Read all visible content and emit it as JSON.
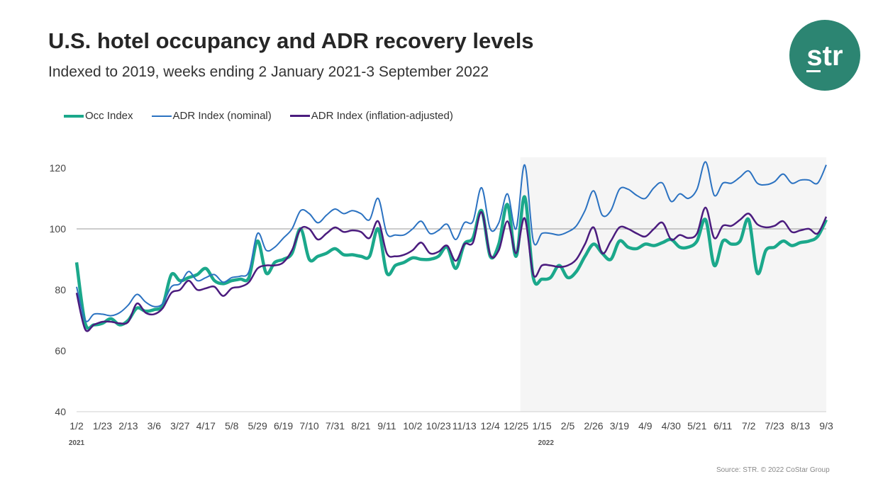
{
  "title": "U.S. hotel occupancy and ADR recovery levels",
  "subtitle": "Indexed to 2019, weeks ending 2 January 2021-3 September 2022",
  "logo_text": "str",
  "source": "Source: STR. © 2022 CoStar Group",
  "colors": {
    "occ": "#1ba88b",
    "adr_nominal": "#2b72c1",
    "adr_infl": "#4b1c7e",
    "shade": "#f5f5f5",
    "logo": "#2c8572"
  },
  "chart_data": {
    "type": "line",
    "title": "U.S. hotel occupancy and ADR recovery levels",
    "ylim": [
      40,
      120
    ],
    "y_ticks": [
      40,
      60,
      80,
      100,
      120
    ],
    "reference_line": 100,
    "legend_position": "top-left",
    "shaded_region": {
      "from": "1/1",
      "to": "9/3",
      "note": "2022"
    },
    "x": [
      "1/2",
      "1/9",
      "1/16",
      "1/23",
      "1/30",
      "2/6",
      "2/13",
      "2/20",
      "2/27",
      "3/6",
      "3/13",
      "3/20",
      "3/27",
      "4/3",
      "4/10",
      "4/17",
      "4/24",
      "5/1",
      "5/8",
      "5/15",
      "5/22",
      "5/29",
      "6/5",
      "6/12",
      "6/19",
      "6/26",
      "7/3",
      "7/10",
      "7/17",
      "7/24",
      "7/31",
      "8/7",
      "8/14",
      "8/21",
      "8/28",
      "9/4",
      "9/11",
      "9/18",
      "9/25",
      "10/2",
      "10/9",
      "10/16",
      "10/23",
      "10/30",
      "11/6",
      "11/13",
      "11/20",
      "11/27",
      "12/4",
      "12/11",
      "12/18",
      "12/25",
      "1/1",
      "1/8",
      "1/15",
      "1/22",
      "1/29",
      "2/5",
      "2/12",
      "2/19",
      "2/26",
      "3/5",
      "3/12",
      "3/19",
      "3/26",
      "4/2",
      "4/9",
      "4/16",
      "4/23",
      "4/30",
      "5/7",
      "5/14",
      "5/21",
      "5/28",
      "6/4",
      "6/11",
      "6/18",
      "6/25",
      "7/2",
      "7/9",
      "7/16",
      "7/23",
      "7/30",
      "8/6",
      "8/13",
      "8/20",
      "8/27",
      "9/3"
    ],
    "x_tick_labels": [
      "1/2",
      "1/23",
      "2/13",
      "3/6",
      "3/27",
      "4/17",
      "5/8",
      "5/29",
      "6/19",
      "7/10",
      "7/31",
      "8/21",
      "9/11",
      "10/2",
      "10/23",
      "11/13",
      "12/4",
      "12/25",
      "1/15",
      "2/5",
      "2/26",
      "3/19",
      "4/9",
      "4/30",
      "5/21",
      "6/11",
      "7/2",
      "7/23",
      "8/13",
      "9/3"
    ],
    "year_labels": [
      "2021",
      "2022"
    ],
    "series": [
      {
        "name": "Occ Index",
        "key": "occ",
        "values": [
          89,
          69,
          68.5,
          69,
          70.5,
          68.5,
          70,
          74,
          73,
          73.5,
          75,
          85,
          83,
          84,
          85,
          87,
          83,
          82,
          83,
          83.5,
          84,
          96,
          85.5,
          89,
          90,
          92,
          100,
          90,
          91,
          92,
          93.5,
          91.5,
          91.5,
          91,
          91,
          100,
          85.5,
          88,
          89,
          90.5,
          90,
          90,
          91,
          94,
          87,
          95,
          97,
          106,
          91,
          95,
          108,
          91,
          110.5,
          84,
          83.5,
          84,
          88,
          84,
          86,
          91,
          95,
          92,
          90,
          96,
          94,
          93.5,
          95,
          94.5,
          95.5,
          96.5,
          94,
          94,
          96,
          103,
          88,
          96,
          95,
          96,
          103,
          85.5,
          93,
          94,
          96,
          94.5,
          95.5,
          96,
          97.5,
          103
        ]
      },
      {
        "name": "ADR Index (nominal)",
        "key": "adr_nominal",
        "values": [
          81,
          70,
          72,
          72,
          71.5,
          72.5,
          75,
          78.5,
          76,
          74.5,
          75.5,
          81,
          82,
          86,
          83,
          84,
          85,
          82.5,
          84,
          84.5,
          86,
          98.5,
          93,
          94,
          97,
          100,
          106,
          105,
          102,
          104.5,
          106.5,
          105,
          106,
          105,
          103,
          110,
          98.5,
          98,
          98,
          100,
          102.5,
          98.5,
          99.5,
          101.5,
          96.5,
          102,
          102.5,
          113.5,
          100,
          102,
          111.5,
          100,
          121,
          96,
          98.5,
          98.5,
          98,
          99,
          101,
          106,
          112.5,
          104.5,
          106,
          113,
          113,
          111,
          110,
          113.5,
          115,
          109,
          111.5,
          110,
          113,
          122,
          111,
          115,
          115,
          117,
          119,
          115,
          114.5,
          115.5,
          118,
          115,
          116,
          116,
          115,
          121
        ]
      },
      {
        "name": "ADR Index (inflation-adjusted)",
        "key": "adr_infl",
        "values": [
          79,
          67,
          68.5,
          69.5,
          69.5,
          69,
          69.5,
          75.5,
          72.5,
          72,
          74,
          79,
          80,
          83,
          80,
          80.5,
          81,
          78,
          80.5,
          81,
          82.5,
          87,
          88,
          88,
          89,
          93,
          100,
          100,
          96.5,
          98.5,
          100.5,
          99,
          99.5,
          99,
          97,
          102.5,
          92,
          91,
          91.5,
          93,
          95.5,
          92,
          92.5,
          94.5,
          89.5,
          95,
          95.5,
          105.5,
          91.5,
          93,
          102.5,
          92,
          103.5,
          85,
          88,
          88,
          87.5,
          88,
          90,
          95,
          100.5,
          92,
          96,
          100.5,
          100,
          98.5,
          97.5,
          100,
          102,
          96.5,
          98,
          97,
          98.5,
          107,
          97,
          101,
          101,
          103,
          105,
          101.5,
          100.5,
          101,
          102.5,
          99,
          99.5,
          100,
          98.5,
          104
        ]
      }
    ]
  }
}
